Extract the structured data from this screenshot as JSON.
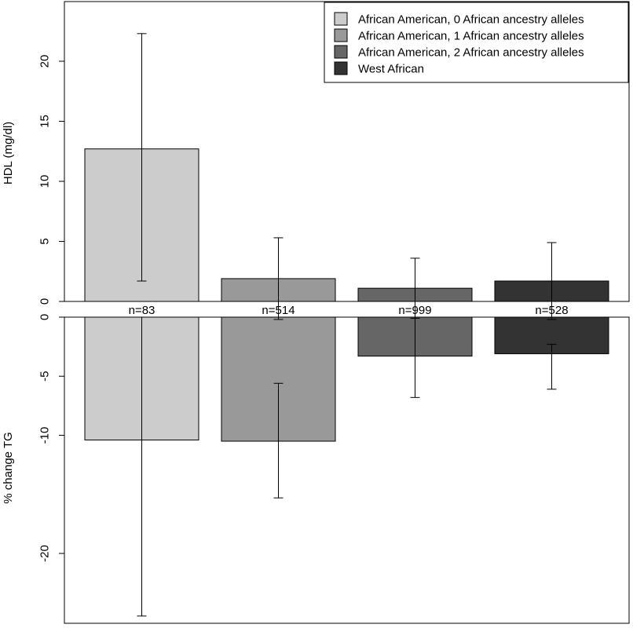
{
  "chart_data": [
    {
      "type": "bar",
      "panel": "top",
      "ylabel": "HDL (mg/dl)",
      "categories": [
        "African American, 0 African ancestry alleles",
        "African American, 1 African ancestry alleles",
        "African American, 2 African ancestry alleles",
        "West African"
      ],
      "values": [
        12.7,
        1.9,
        1.1,
        1.7
      ],
      "error_low": [
        1.7,
        -1.5,
        -1.4,
        -1.5
      ],
      "error_high": [
        22.3,
        5.3,
        3.6,
        4.9
      ],
      "ylim": [
        0,
        25
      ],
      "yticks": [
        0,
        5,
        10,
        15,
        20
      ],
      "n_labels": [
        "n=83",
        "n=514",
        "n=999",
        "n=528"
      ],
      "colors": [
        "#cccccc",
        "#999999",
        "#666666",
        "#333333"
      ],
      "legend_position": "top-right",
      "grid": false
    },
    {
      "type": "bar",
      "panel": "bottom",
      "ylabel": "% change TG",
      "categories": [
        "African American, 0 African ancestry alleles",
        "African American, 1 African ancestry alleles",
        "African American, 2 African ancestry alleles",
        "West African"
      ],
      "values": [
        -10.4,
        -10.5,
        -3.3,
        -3.1
      ],
      "error_low": [
        -25.3,
        -15.3,
        -6.8,
        -6.1
      ],
      "error_high": [
        0.0,
        -5.6,
        0.0,
        -2.3
      ],
      "ylim": [
        0,
        -25.5
      ],
      "yticks": [
        0,
        -5,
        -10,
        -20
      ],
      "colors": [
        "#cccccc",
        "#999999",
        "#666666",
        "#333333"
      ],
      "grid": false
    }
  ],
  "legend": {
    "items": [
      {
        "label": "African American, 0 African ancestry alleles",
        "color": "#cccccc"
      },
      {
        "label": "African American, 1 African ancestry alleles",
        "color": "#999999"
      },
      {
        "label": "African American, 2 African ancestry alleles",
        "color": "#666666"
      },
      {
        "label": "West African",
        "color": "#333333"
      }
    ]
  }
}
